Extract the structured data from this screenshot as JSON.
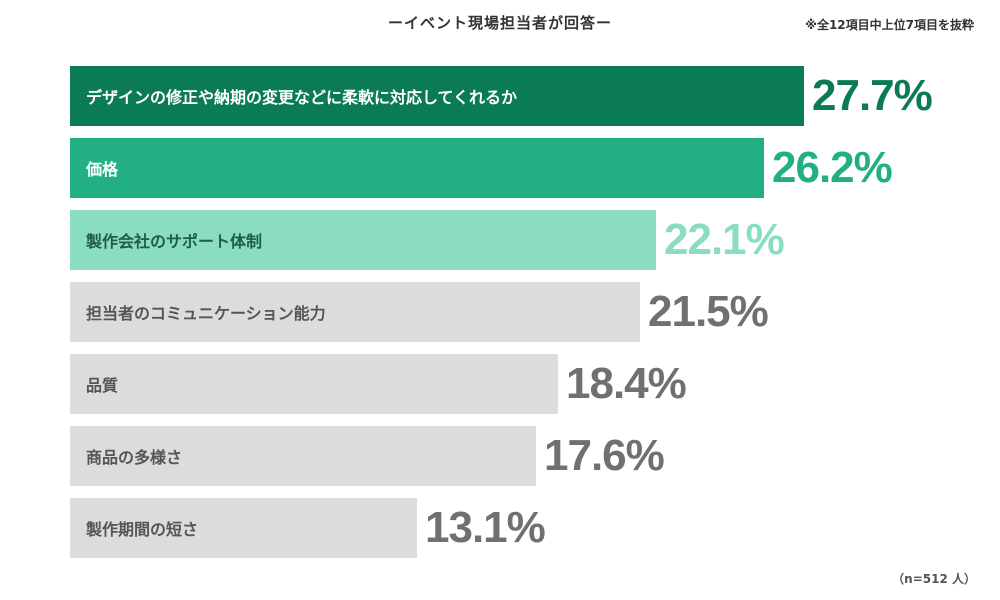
{
  "header": {
    "title": "ーイベント現場担当者が回答ー",
    "note": "※全12項目中上位7項目を抜粋"
  },
  "footer": {
    "sample": "（n=512 人）"
  },
  "chart_data": {
    "type": "bar",
    "orientation": "horizontal",
    "categories": [
      "デザインの修正や納期の変更などに柔軟に対応してくれるか",
      "価格",
      "製作会社のサポート体制",
      "担当者のコミュニケーション能力",
      "品質",
      "商品の多様さ",
      "製作期間の短さ"
    ],
    "values": [
      27.7,
      26.2,
      22.1,
      21.5,
      18.4,
      17.6,
      13.1
    ],
    "value_labels": [
      "27.7%",
      "26.2%",
      "22.1%",
      "21.5%",
      "18.4%",
      "17.6%",
      "13.1%"
    ],
    "unit": "%",
    "colors": {
      "bars": [
        "#0b7a57",
        "#22af84",
        "#8adcc2",
        "#dcdcdc",
        "#dcdcdc",
        "#dcdcdc",
        "#dcdcdc"
      ],
      "label_text": [
        "#ffffff",
        "#ffffff",
        "#1f5d45",
        "#555555",
        "#555555",
        "#555555",
        "#555555"
      ],
      "value_text": [
        "#0b7a57",
        "#22af84",
        "#8adcc2",
        "#707070",
        "#707070",
        "#707070",
        "#707070"
      ]
    }
  }
}
